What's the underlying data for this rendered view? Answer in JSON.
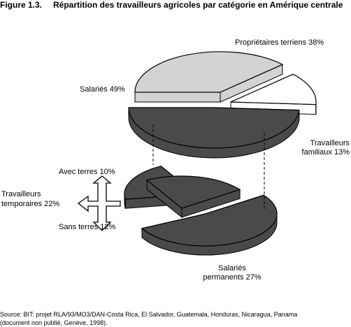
{
  "figure_label": "Figure 1.3.",
  "title": "Répartition des travailleurs agricoles par catégorie en Amérique centrale",
  "source": "Source: BIT: projet RLA/93/MO3/DAN-Costa Rica, El Salvador, Guatemala, Honduras, Nicaragua, Panama",
  "source_note": "(document non publié, Genève, 1998).",
  "colors": {
    "dark": "#4a4a4a",
    "light": "#d3d3d3",
    "white": "#ffffff",
    "outline": "#000000"
  },
  "chart_data": [
    {
      "type": "pie",
      "style": "3d-exploded",
      "slices": [
        {
          "label": "Propriétaires terriens",
          "value": 38,
          "display": "Propriétaires terriens 38%",
          "color": "light"
        },
        {
          "label": "Travailleurs familiaux",
          "value": 13,
          "display_lines": [
            "Travailleurs",
            "familiaux 13%"
          ],
          "color": "white"
        },
        {
          "label": "Salariés",
          "value": 49,
          "display": "Salariés 49%",
          "color": "dark"
        }
      ]
    },
    {
      "type": "pie",
      "style": "3d-exploded-half",
      "slices": [
        {
          "label": "Avec terres",
          "value": 10,
          "display": "Avec terres 10%",
          "color": "dark"
        },
        {
          "label": "Sans terres",
          "value": 12,
          "display": "Sans terres 12%",
          "color": "dark"
        },
        {
          "label": "Salariés permanents",
          "value": 27,
          "display_lines": [
            "Salariés",
            "permanents 27%"
          ],
          "color": "dark"
        }
      ],
      "group": {
        "display_lines": [
          "Travailleurs",
          "temporaires 22%"
        ]
      }
    }
  ]
}
